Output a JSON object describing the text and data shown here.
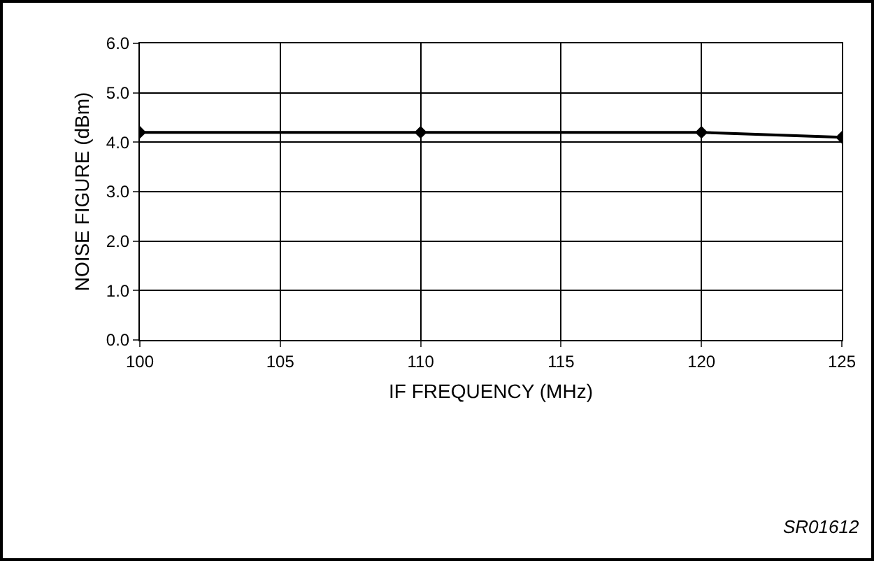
{
  "chart_data": {
    "type": "line",
    "xlabel": "IF FREQUENCY (MHz)",
    "ylabel": "NOISE FIGURE (dBm)",
    "x": [
      100,
      110,
      120,
      125
    ],
    "series": [
      {
        "color": "#000000",
        "values": [
          4.2,
          4.2,
          4.2,
          4.1
        ]
      }
    ],
    "xlim": [
      100,
      125
    ],
    "xticks": [
      100,
      105,
      110,
      115,
      120,
      125
    ],
    "ylim": [
      0,
      6
    ],
    "yticks": [
      {
        "value": 0,
        "label": "0.0"
      },
      {
        "value": 1,
        "label": "1.0"
      },
      {
        "value": 2,
        "label": "2.0"
      },
      {
        "value": 3,
        "label": "3.0"
      },
      {
        "value": 4,
        "label": "4.0"
      },
      {
        "value": 5,
        "label": "5.0"
      },
      {
        "value": 6,
        "label": "6.0"
      }
    ],
    "grid": true,
    "marker": "diamond",
    "line_style": "solid",
    "annotations": [
      "SR01612"
    ]
  }
}
